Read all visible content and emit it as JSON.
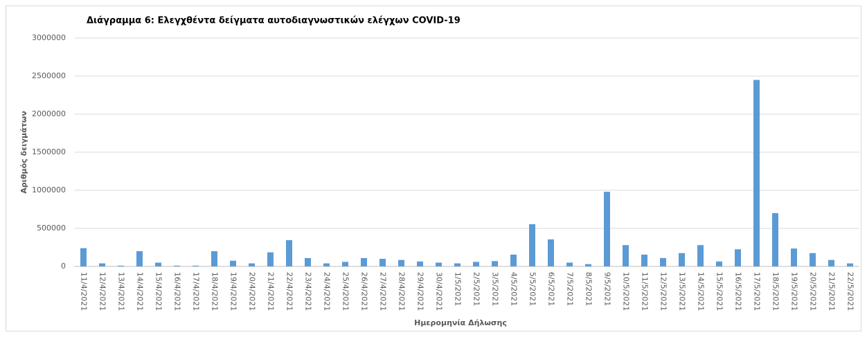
{
  "chart_data": {
    "type": "bar",
    "title": "Διάγραμμα 6: Ελεγχθέντα δείγματα αυτοδιαγνωστικών ελέγχων COVID-19",
    "x_label": "Ημερομηνία Δήλωσης",
    "y_label": "Αριθμός δειγμάτων",
    "color": "#5b9bd5",
    "grid": true,
    "categories": [
      "11/4/2021",
      "12/4/2021",
      "13/4/2021",
      "14/4/2021",
      "15/4/2021",
      "16/4/2021",
      "17/4/2021",
      "18/4/2021",
      "19/4/2021",
      "20/4/2021",
      "21/4/2021",
      "22/4/2021",
      "23/4/2021",
      "24/4/2021",
      "25/4/2021",
      "26/4/2021",
      "27/4/2021",
      "28/4/2021",
      "29/4/2021",
      "30/4/2021",
      "1/5/2021",
      "2/5/2021",
      "3/5/2021",
      "4/5/2021",
      "5/5/2021",
      "6/5/2021",
      "7/5/2021",
      "8/5/2021",
      "9/5/2021",
      "10/5/2021",
      "11/5/2021",
      "12/5/2021",
      "13/5/2021",
      "14/5/2021",
      "15/5/2021",
      "16/5/2021",
      "17/5/2021",
      "18/5/2021",
      "19/5/2021",
      "20/5/2021",
      "21/5/2021",
      "22/5/2021"
    ],
    "values": [
      240000,
      40000,
      10000,
      200000,
      50000,
      10000,
      10000,
      200000,
      75000,
      40000,
      185000,
      345000,
      110000,
      40000,
      60000,
      110000,
      100000,
      85000,
      65000,
      50000,
      40000,
      60000,
      70000,
      155000,
      555000,
      355000,
      50000,
      30000,
      980000,
      280000,
      155000,
      110000,
      175000,
      280000,
      65000,
      225000,
      2450000,
      700000,
      235000,
      175000,
      85000,
      40000
    ],
    "ylim": [
      0,
      3000000
    ],
    "yticks": [
      0,
      500000,
      1000000,
      1500000,
      2000000,
      2500000,
      3000000
    ]
  }
}
